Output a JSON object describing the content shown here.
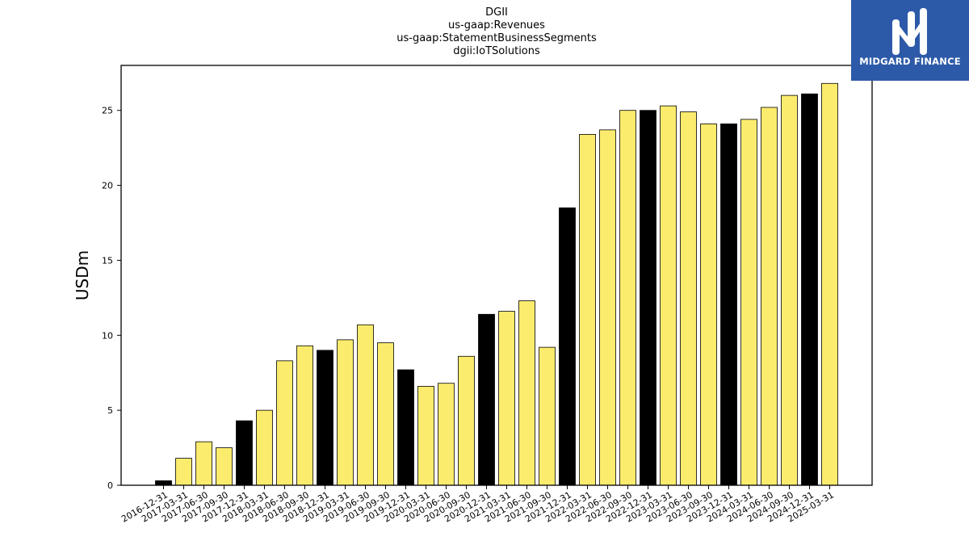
{
  "chart_data": {
    "type": "bar",
    "title": [
      "DGII",
      "us-gaap:Revenues",
      "us-gaap:StatementBusinessSegments",
      "dgii:IoTSolutions"
    ],
    "xlabel": "",
    "ylabel": "USDm",
    "ylim": [
      0,
      28
    ],
    "yticks": [
      0,
      5,
      10,
      15,
      20,
      25
    ],
    "grid": false,
    "categories": [
      "2016-12-31",
      "2017-03-31",
      "2017-06-30",
      "2017-09-30",
      "2017-12-31",
      "2018-03-31",
      "2018-06-30",
      "2018-09-30",
      "2018-12-31",
      "2019-03-31",
      "2019-06-30",
      "2019-09-30",
      "2019-12-31",
      "2020-03-31",
      "2020-06-30",
      "2020-09-30",
      "2020-12-31",
      "2021-03-31",
      "2021-06-30",
      "2021-09-30",
      "2021-12-31",
      "2022-03-31",
      "2022-06-30",
      "2022-09-30",
      "2022-12-31",
      "2023-03-31",
      "2023-06-30",
      "2023-09-30",
      "2023-12-31",
      "2024-03-31",
      "2024-06-30",
      "2024-09-30",
      "2024-12-31",
      "2025-03-31"
    ],
    "values": [
      0.3,
      1.8,
      2.9,
      2.5,
      4.3,
      5.0,
      8.3,
      9.3,
      9.0,
      9.7,
      10.7,
      9.5,
      7.7,
      6.6,
      6.8,
      8.6,
      11.4,
      11.6,
      12.3,
      9.2,
      18.5,
      23.4,
      23.7,
      25.0,
      25.0,
      25.3,
      24.9,
      24.1,
      24.1,
      24.4,
      25.2,
      26.0,
      26.1,
      26.8
    ],
    "highlight_every_q4": true,
    "colors": {
      "q4": "#000000",
      "other": "#fcec6e",
      "edge": "#000000"
    }
  },
  "logo": {
    "text": "MIDGARD FINANCE",
    "background": "#2d5aa8"
  }
}
